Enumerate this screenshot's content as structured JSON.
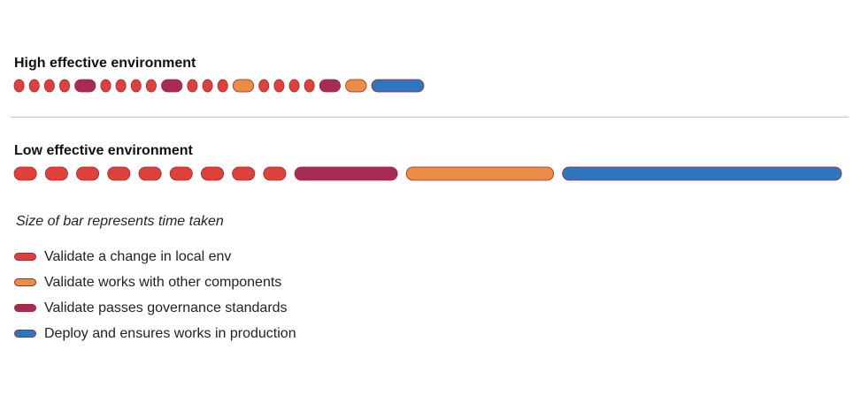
{
  "colors": {
    "red": "#e0403a",
    "orange": "#eb8d45",
    "maroon": "#a82a57",
    "blue": "#2f76be",
    "pill_border": "#a4292c"
  },
  "high": {
    "title": "High effective environment",
    "bars": [
      "red",
      "red",
      "red",
      "red",
      "maroon",
      "red",
      "red",
      "red",
      "red",
      "maroon",
      "red",
      "red",
      "red",
      "orange",
      "red",
      "red",
      "red",
      "red",
      "maroon",
      "orange",
      "blue"
    ],
    "relative_durations": [
      1,
      1,
      1,
      1,
      2.1,
      1,
      1,
      1,
      1,
      2.1,
      1,
      1,
      1,
      2.1,
      1,
      1,
      1,
      1,
      2.1,
      2.1,
      5.3
    ]
  },
  "low": {
    "title": "Low effective environment",
    "bars": [
      "red",
      "red",
      "red",
      "red",
      "red",
      "red",
      "red",
      "red",
      "red",
      "maroon",
      "orange",
      "blue"
    ],
    "relative_durations": [
      1,
      1,
      1,
      1,
      1,
      1,
      1,
      1,
      1,
      4.6,
      6.6,
      12.5
    ]
  },
  "note": "Size of bar represents time taken",
  "legend": [
    {
      "color": "red",
      "label": "Validate a change in local env"
    },
    {
      "color": "orange",
      "label": "Validate works with other components"
    },
    {
      "color": "maroon",
      "label": "Validate passes governance standards"
    },
    {
      "color": "blue",
      "label": "Deploy and ensures works in production"
    }
  ]
}
